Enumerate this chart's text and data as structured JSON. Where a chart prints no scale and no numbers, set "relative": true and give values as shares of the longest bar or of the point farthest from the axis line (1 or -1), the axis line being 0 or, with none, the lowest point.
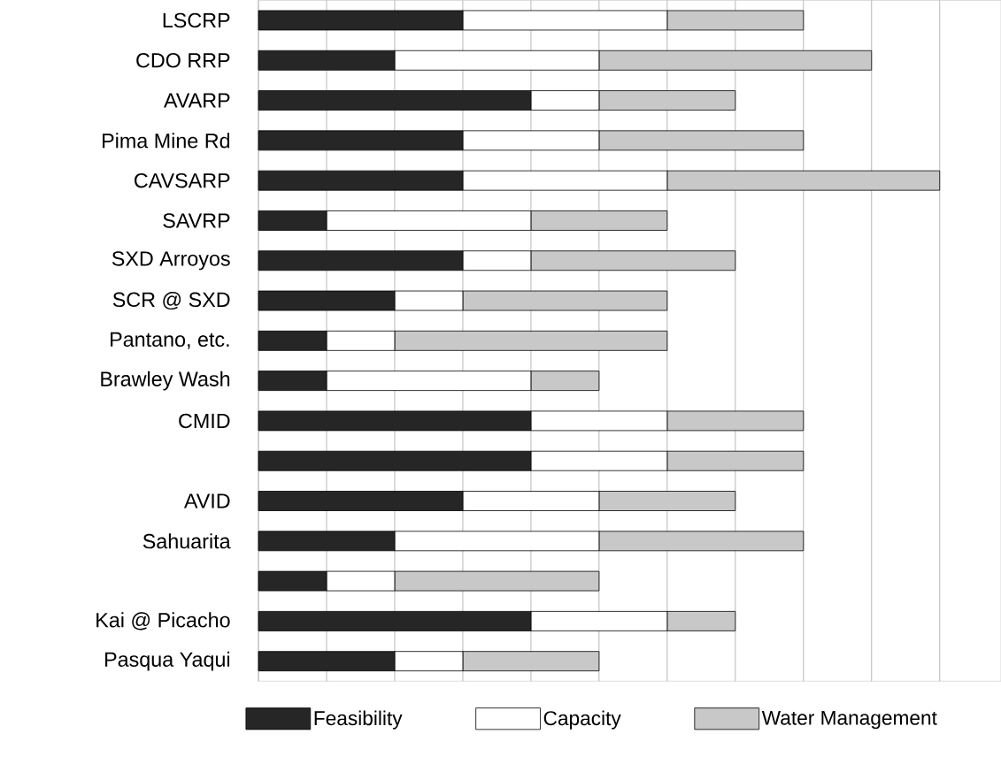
{
  "chart_data": {
    "type": "bar",
    "orientation": "horizontal",
    "stacked": true,
    "relative": true,
    "grid": "x",
    "legend": "bottom",
    "categories": [
      "LSCRP",
      "CDO RRP",
      "AVARP",
      "Pima Mine Rd",
      "CAVSARP",
      "SAVRP",
      "SXD Arroyos",
      "SCR @ SXD",
      "Pantano, etc.",
      "Brawley Wash",
      "CMID",
      null,
      "AVID",
      "Sahuarita",
      null,
      "Kai @ Picacho",
      "Pasqua Yaqui"
    ],
    "series": [
      {
        "name": "Feasibility",
        "color": "#262626",
        "values": [
          0.3,
          0.2,
          0.4,
          0.3,
          0.3,
          0.1,
          0.3,
          0.2,
          0.1,
          0.1,
          0.4,
          0.4,
          0.3,
          0.2,
          0.1,
          0.4,
          0.2
        ]
      },
      {
        "name": "Capacity",
        "color": "#ffffff",
        "values": [
          0.3,
          0.3,
          0.1,
          0.2,
          0.3,
          0.3,
          0.1,
          0.1,
          0.1,
          0.3,
          0.2,
          0.2,
          0.2,
          0.3,
          0.1,
          0.2,
          0.1
        ]
      },
      {
        "name": "Water Management",
        "color": "#c8c8c8",
        "values": [
          0.2,
          0.4,
          0.2,
          0.3,
          0.4,
          0.2,
          0.3,
          0.3,
          0.4,
          0.1,
          0.2,
          0.2,
          0.2,
          0.3,
          0.3,
          0.1,
          0.2
        ]
      }
    ]
  }
}
